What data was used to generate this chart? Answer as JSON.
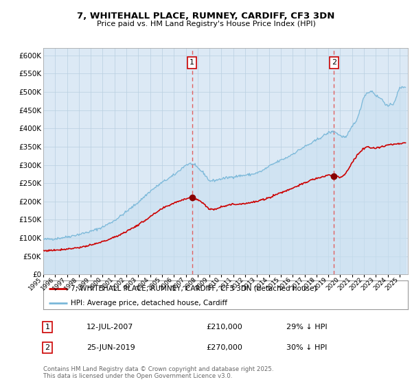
{
  "title": "7, WHITEHALL PLACE, RUMNEY, CARDIFF, CF3 3DN",
  "subtitle": "Price paid vs. HM Land Registry's House Price Index (HPI)",
  "legend_property": "7, WHITEHALL PLACE, RUMNEY, CARDIFF, CF3 3DN (detached house)",
  "legend_hpi": "HPI: Average price, detached house, Cardiff",
  "sale1_date": "12-JUL-2007",
  "sale1_price": 210000,
  "sale1_hpi_diff": "29% ↓ HPI",
  "sale1_year": 2007.53,
  "sale2_date": "25-JUN-2019",
  "sale2_price": 270000,
  "sale2_hpi_diff": "30% ↓ HPI",
  "sale2_year": 2019.48,
  "hpi_color": "#7ab8d9",
  "hpi_fill_color": "#c8dff0",
  "property_color": "#cc0000",
  "dashed_line_color": "#e06060",
  "marker_color": "#880000",
  "plot_bg_color": "#ffffff",
  "chart_bg_color": "#dce9f5",
  "grid_color": "#b8cfe0",
  "footer_text": "Contains HM Land Registry data © Crown copyright and database right 2025.\nThis data is licensed under the Open Government Licence v3.0.",
  "ylim": [
    0,
    620000
  ],
  "yticks": [
    0,
    50000,
    100000,
    150000,
    200000,
    250000,
    300000,
    350000,
    400000,
    450000,
    500000,
    550000,
    600000
  ],
  "ytick_labels": [
    "£0",
    "£50K",
    "£100K",
    "£150K",
    "£200K",
    "£250K",
    "£300K",
    "£350K",
    "£400K",
    "£450K",
    "£500K",
    "£550K",
    "£600K"
  ],
  "xmin": 1995.0,
  "xmax": 2025.7,
  "hpi_key_years": [
    1995,
    1996,
    1997,
    1998,
    1999,
    2000,
    2001,
    2002,
    2003,
    2004,
    2005,
    2006,
    2007.0,
    2007.5,
    2008.0,
    2008.5,
    2009.0,
    2009.5,
    2010,
    2010.5,
    2011,
    2011.5,
    2012,
    2012.5,
    2013,
    2013.5,
    2014,
    2014.5,
    2015,
    2015.5,
    2016,
    2016.5,
    2017,
    2017.5,
    2018,
    2018.5,
    2019.0,
    2019.5,
    2020.0,
    2020.5,
    2021,
    2021.5,
    2022,
    2022.3,
    2022.7,
    2023,
    2023.5,
    2024,
    2024.5,
    2025,
    2025.5
  ],
  "hpi_key_vals": [
    96000,
    98000,
    103000,
    110000,
    118000,
    130000,
    148000,
    172000,
    198000,
    228000,
    252000,
    272000,
    300000,
    304000,
    292000,
    278000,
    256000,
    258000,
    262000,
    265000,
    268000,
    270000,
    272000,
    274000,
    278000,
    285000,
    296000,
    305000,
    313000,
    320000,
    330000,
    340000,
    350000,
    358000,
    368000,
    378000,
    388000,
    392000,
    380000,
    375000,
    405000,
    430000,
    488000,
    498000,
    502000,
    490000,
    480000,
    460000,
    468000,
    510000,
    515000
  ],
  "prop_key_years": [
    1995,
    1996,
    1997,
    1998,
    1999,
    2000,
    2001,
    2002,
    2003,
    2004,
    2005,
    2006,
    2007.0,
    2007.3,
    2007.5,
    2008.0,
    2008.5,
    2009.0,
    2009.3,
    2009.7,
    2010,
    2010.5,
    2011,
    2011.5,
    2012,
    2012.5,
    2013,
    2013.5,
    2014,
    2014.5,
    2015,
    2015.5,
    2016,
    2016.5,
    2017,
    2017.5,
    2018,
    2018.5,
    2019.0,
    2019.3,
    2019.7,
    2020.0,
    2020.5,
    2021,
    2021.5,
    2022,
    2022.3,
    2022.7,
    2023,
    2023.5,
    2024,
    2024.5,
    2025,
    2025.5
  ],
  "prop_key_vals": [
    65000,
    67000,
    70000,
    74000,
    80000,
    90000,
    102000,
    118000,
    136000,
    158000,
    180000,
    196000,
    208000,
    210000,
    212000,
    205000,
    195000,
    178000,
    178000,
    182000,
    186000,
    190000,
    192000,
    193000,
    195000,
    197000,
    200000,
    205000,
    210000,
    218000,
    224000,
    230000,
    237000,
    244000,
    250000,
    258000,
    263000,
    267000,
    272000,
    271000,
    270000,
    265000,
    278000,
    305000,
    330000,
    345000,
    350000,
    348000,
    345000,
    350000,
    355000,
    356000,
    358000,
    360000
  ]
}
